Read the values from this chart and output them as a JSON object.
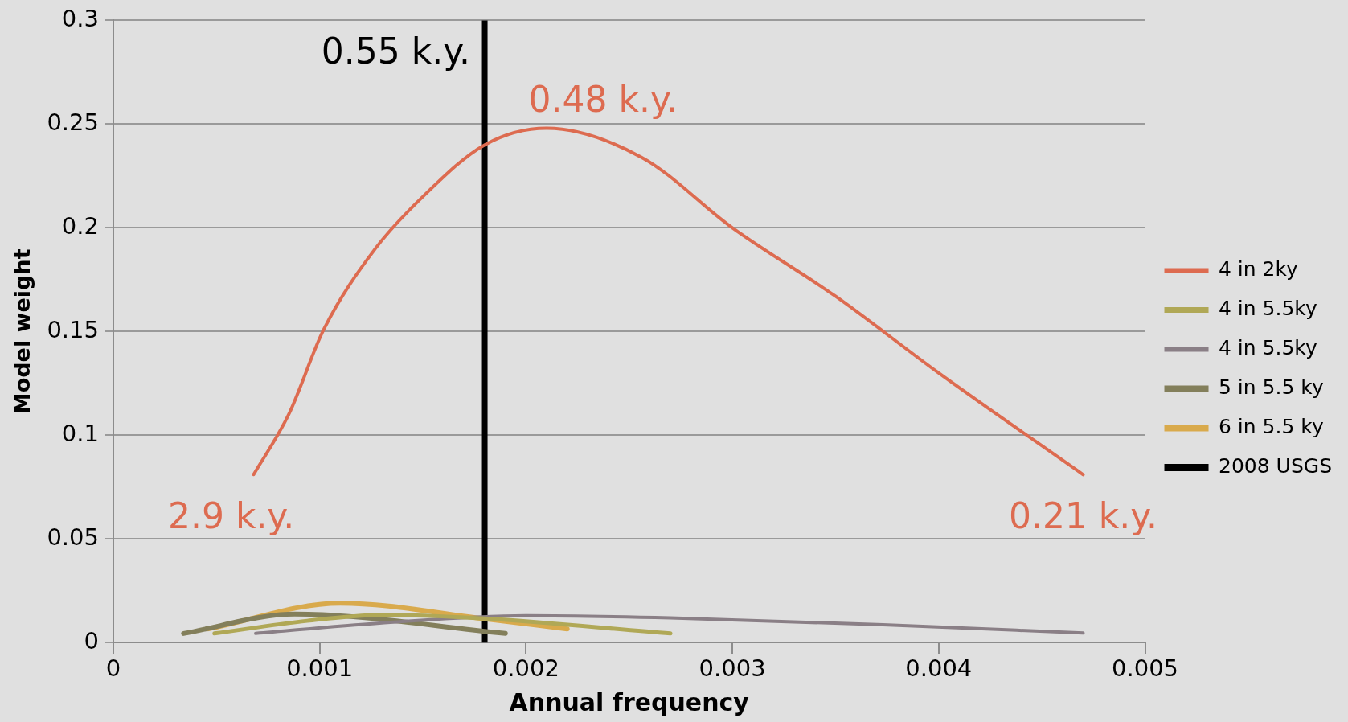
{
  "chart_data": {
    "type": "line",
    "xlabel": "Annual frequency",
    "ylabel": "Model weight",
    "xlim": [
      0,
      0.005
    ],
    "xticks": [
      0,
      0.001,
      0.002,
      0.003,
      0.004,
      0.005
    ],
    "ylim": [
      0,
      0.3
    ],
    "yticks": [
      0,
      0.05,
      0.1,
      0.15,
      0.2,
      0.25,
      0.3
    ],
    "grid": "y",
    "legend": "right",
    "marker": "none",
    "series": [
      {
        "name": "4 in 2ky",
        "color": "#dd6b50",
        "x": [
          0.00068,
          0.00085,
          0.00102,
          0.00127,
          0.0015,
          0.0018,
          0.0021,
          0.00256,
          0.003,
          0.0035,
          0.004,
          0.0047
        ],
        "values": [
          0.081,
          0.11,
          0.151,
          0.19,
          0.215,
          0.24,
          0.248,
          0.234,
          0.2,
          0.167,
          0.13,
          0.081
        ]
      },
      {
        "name": "4 in 5.5ky",
        "color": "#b0a856",
        "x": [
          0.00049,
          0.00094,
          0.00129,
          0.00178,
          0.0027
        ],
        "values": [
          0.0044,
          0.0105,
          0.0133,
          0.0117,
          0.0044
        ]
      },
      {
        "name": "4 in 5.5ky",
        "color": "#8a7f86",
        "x": [
          0.00069,
          0.00129,
          0.002,
          0.0027,
          0.00373,
          0.0047
        ],
        "values": [
          0.0044,
          0.0094,
          0.013,
          0.0119,
          0.0086,
          0.0046
        ]
      },
      {
        "name": "5 in 5.5 ky",
        "color": "#837f5b",
        "x": [
          0.00034,
          0.00088,
          0.0019
        ],
        "values": [
          0.0044,
          0.0137,
          0.0044
        ]
      },
      {
        "name": "6 in 5.5 ky",
        "color": "#d9aa4c",
        "x": [
          0.00046,
          0.0011,
          0.00178,
          0.0022
        ],
        "values": [
          0.0066,
          0.019,
          0.0117,
          0.0066
        ]
      },
      {
        "name": "2008 USGS",
        "color": "#000000",
        "x": [
          0.0018,
          0.0018
        ],
        "values": [
          0,
          0.3
        ]
      }
    ],
    "annotations": [
      {
        "text": "0.55 k.y.",
        "x": 0.0018,
        "y": 0.3
      },
      {
        "text": "0.48 k.y.",
        "x": 0.0021,
        "y": 0.248
      },
      {
        "text": "2.9 k.y.",
        "x": 0.00068,
        "y": 0.081
      },
      {
        "text": "0.21 k.y.",
        "x": 0.0047,
        "y": 0.081
      }
    ]
  }
}
